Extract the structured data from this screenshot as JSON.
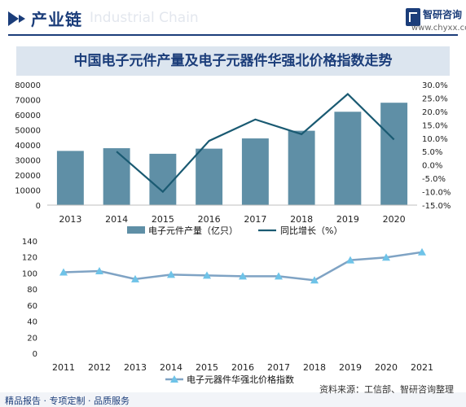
{
  "header": {
    "title": "产业链",
    "watermark": "Industrial Chain",
    "logo_name": "智研咨询",
    "logo_url": "www.chyxx.com"
  },
  "colors": {
    "brand": "#1b3d7a",
    "bar": "#5f8fa6",
    "line": "#1a5a72",
    "index_line": "#7fa3c4",
    "triangle": "#6ec3e8",
    "title_bg": "#dce5ef"
  },
  "chart_data": [
    {
      "type": "bar",
      "title": "中国电子元件产量及电子元器件华强北价格指数走势",
      "categories": [
        "2013",
        "2014",
        "2015",
        "2016",
        "2017",
        "2018",
        "2019",
        "2020"
      ],
      "series": [
        {
          "name": "电子元件产量（亿只）",
          "type": "bar",
          "axis": "left",
          "values": [
            36000,
            37800,
            34100,
            37500,
            44300,
            49400,
            62000,
            68000
          ]
        },
        {
          "name": "同比增长（%）",
          "type": "line",
          "axis": "right",
          "values": [
            null,
            5.0,
            -10.0,
            9.0,
            17.0,
            11.5,
            26.5,
            9.5
          ]
        }
      ],
      "y_left": {
        "min": 0,
        "max": 80000,
        "ticks": [
          "80000",
          "70000",
          "60000",
          "50000",
          "40000",
          "30000",
          "20000",
          "10000",
          "0"
        ]
      },
      "y_right": {
        "min": -15,
        "max": 30,
        "ticks": [
          "30.0%",
          "25.0%",
          "20.0%",
          "15.0%",
          "10.0%",
          "5.0%",
          "0.0%",
          "-5.0%",
          "-10.0%",
          "-15.0%"
        ]
      },
      "legend": [
        "电子元件产量（亿只）",
        "同比增长（%）"
      ],
      "legend_position": "bottom",
      "grid": false
    },
    {
      "type": "line",
      "categories": [
        "2011",
        "2012",
        "2013",
        "2014",
        "2015",
        "2016",
        "2017",
        "2018",
        "2019",
        "2020",
        "2021"
      ],
      "series": [
        {
          "name": "电子元器件华强北价格指数",
          "values": [
            101,
            102.5,
            92.5,
            98,
            97,
            96,
            96,
            91,
            116,
            119.5,
            126
          ]
        }
      ],
      "y": {
        "min": 0,
        "max": 140,
        "ticks": [
          "140",
          "120",
          "100",
          "80",
          "60",
          "40",
          "20",
          "0"
        ]
      },
      "legend": [
        "电子元器件华强北价格指数"
      ],
      "legend_position": "bottom",
      "grid": false
    }
  ],
  "footer": {
    "left": "精品报告 · 专项定制 · 品质服务",
    "source": "资料来源：工信部、智研咨询整理"
  }
}
